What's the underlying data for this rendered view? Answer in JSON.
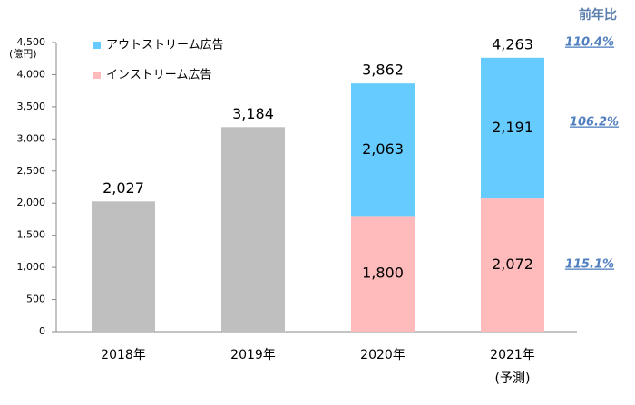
{
  "chart_data": {
    "type": "bar",
    "stacked": true,
    "y_unit": "(億円)",
    "categories": [
      "2018年",
      "2019年",
      "2020年",
      "2021年"
    ],
    "category_notes": [
      null,
      null,
      null,
      "(予測)"
    ],
    "series": [
      {
        "color": "#bfbfbf",
        "label_position": "outside",
        "values": [
          2027,
          3184,
          null,
          null
        ],
        "value_labels": [
          "2,027",
          "3,184",
          null,
          null
        ]
      },
      {
        "name": "インストリーム広告",
        "color": "#ffbbbb",
        "label_position": "inside",
        "values": [
          null,
          null,
          1800,
          2072
        ],
        "value_labels": [
          null,
          null,
          "1,800",
          "2,072"
        ]
      },
      {
        "name": "アウトストリーム広告",
        "color": "#66ccff",
        "label_position": "inside",
        "values": [
          null,
          null,
          2063,
          2191
        ],
        "value_labels": [
          null,
          null,
          "2,063",
          "2,191"
        ]
      }
    ],
    "totals": [
      null,
      null,
      3862,
      4263
    ],
    "total_labels": [
      null,
      null,
      "3,862",
      "4,263"
    ],
    "ylim": [
      0,
      4500
    ],
    "yticks": [
      0,
      500,
      {
        "value": 1000,
        "label": "1,000"
      },
      {
        "value": 1500,
        "label": "1,500"
      },
      {
        "value": 2000,
        "label": "2,000"
      },
      {
        "value": 2500,
        "label": "2,500"
      },
      {
        "value": 3000,
        "label": "3,000"
      },
      {
        "value": 3500,
        "label": "3,500"
      },
      {
        "value": 4000,
        "label": "4,000"
      },
      {
        "value": 4500,
        "label": "4,500"
      }
    ],
    "grid": false,
    "growth_title": "前年比",
    "growth_rates": [
      "110.4%",
      "106.2%",
      "115.1%"
    ]
  }
}
